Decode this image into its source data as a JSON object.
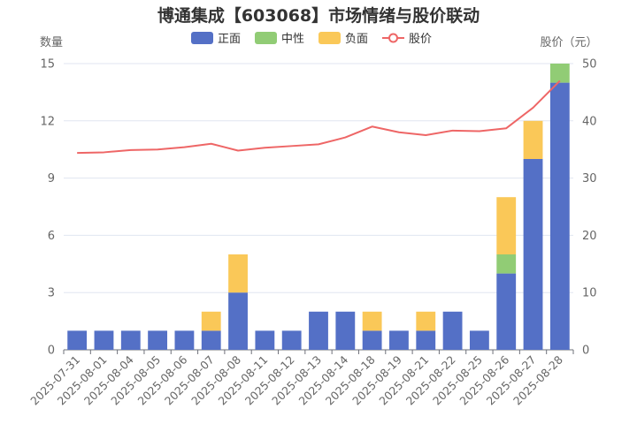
{
  "chart_data": {
    "type": "bar",
    "title": "博通集成【603068】市场情绪与股价联动",
    "ylabel_left": "数量",
    "ylabel_right": "股价（元）",
    "ylim_left": [
      0,
      15
    ],
    "yticks_left": [
      "0",
      "3",
      "6",
      "9",
      "12",
      "15"
    ],
    "ylim_right": [
      0,
      50
    ],
    "yticks_right": [
      "0",
      "10",
      "20",
      "30",
      "40",
      "50"
    ],
    "grid": true,
    "legend_position": "top-center",
    "categories": [
      "2025-07-31",
      "2025-08-01",
      "2025-08-04",
      "2025-08-05",
      "2025-08-06",
      "2025-08-07",
      "2025-08-08",
      "2025-08-11",
      "2025-08-12",
      "2025-08-13",
      "2025-08-14",
      "2025-08-18",
      "2025-08-19",
      "2025-08-21",
      "2025-08-22",
      "2025-08-25",
      "2025-08-26",
      "2025-08-27",
      "2025-08-28"
    ],
    "series": [
      {
        "name": "正面",
        "type": "bar",
        "stack": "sentiment",
        "color": "#5470c6",
        "values": [
          1,
          1,
          1,
          1,
          1,
          1,
          3,
          1,
          1,
          2,
          2,
          1,
          1,
          1,
          2,
          1,
          4,
          10,
          14
        ]
      },
      {
        "name": "中性",
        "type": "bar",
        "stack": "sentiment",
        "color": "#91cc75",
        "values": [
          0,
          0,
          0,
          0,
          0,
          0,
          0,
          0,
          0,
          0,
          0,
          0,
          0,
          0,
          0,
          0,
          1,
          0,
          1
        ]
      },
      {
        "name": "负面",
        "type": "bar",
        "stack": "sentiment",
        "color": "#fac858",
        "values": [
          0,
          0,
          0,
          0,
          0,
          1,
          2,
          0,
          0,
          0,
          0,
          1,
          0,
          1,
          0,
          0,
          3,
          2,
          0
        ]
      },
      {
        "name": "股价",
        "type": "line",
        "axis": "right",
        "color": "#ee6666",
        "values": [
          34.4,
          34.5,
          34.9,
          35.0,
          35.4,
          36.0,
          34.8,
          35.3,
          35.6,
          35.9,
          37.1,
          39.0,
          38.0,
          37.5,
          38.3,
          38.2,
          38.7,
          42.3,
          47.0
        ]
      }
    ]
  }
}
